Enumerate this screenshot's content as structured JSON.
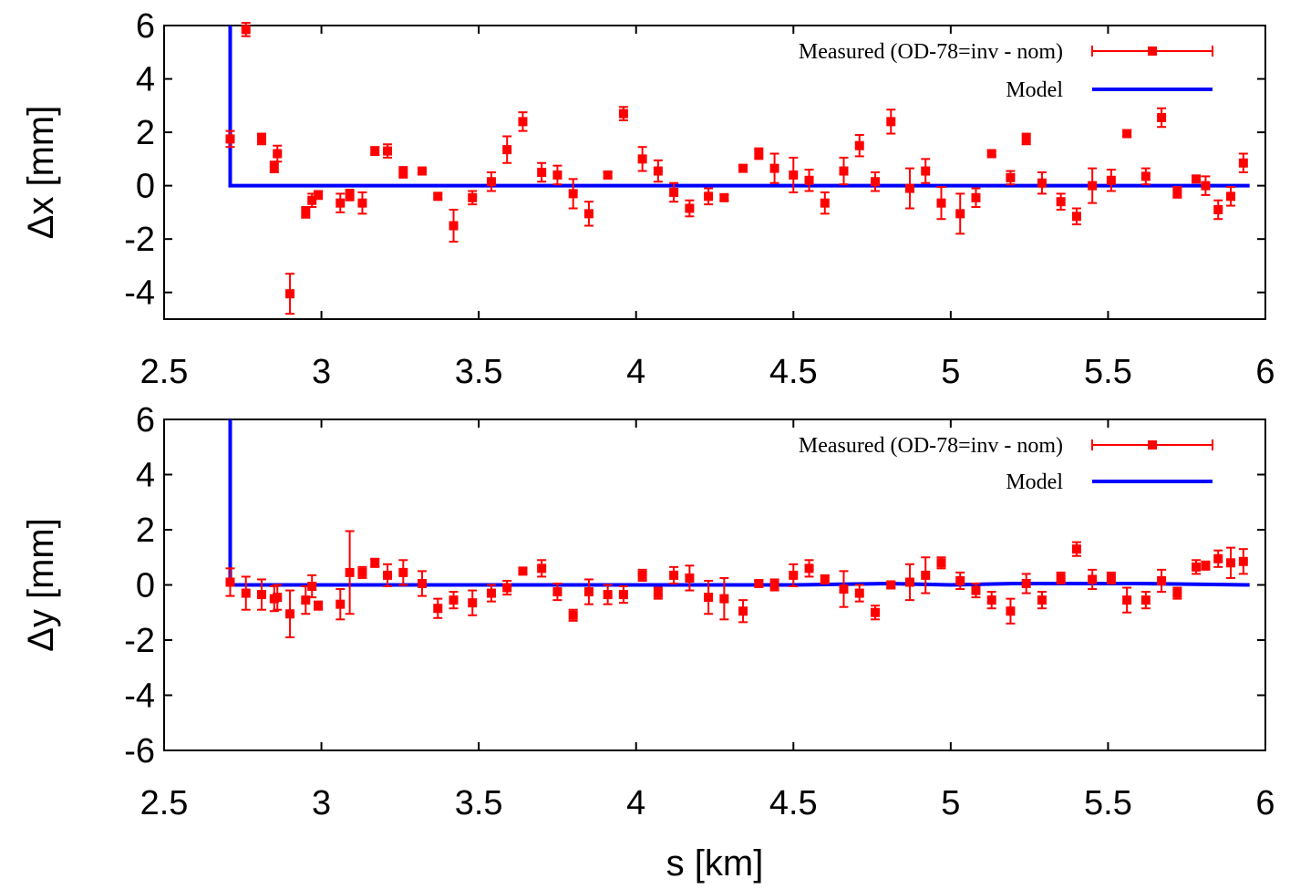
{
  "chart_data": [
    {
      "type": "scatter",
      "title": "",
      "xlabel": "",
      "ylabel": "Δx [mm]",
      "xlim": [
        2.5,
        6.0
      ],
      "ylim": [
        -5,
        6
      ],
      "x_ticks": [
        "2.5",
        "3",
        "3.5",
        "4",
        "4.5",
        "5",
        "5.5",
        "6"
      ],
      "y_ticks": [
        "6",
        "4",
        "2",
        "0",
        "-2",
        "-4"
      ],
      "y_tick_values": [
        6,
        4,
        2,
        0,
        -2,
        -4
      ],
      "grid": false,
      "legend_position": "top-right",
      "legend": [
        "Measured (OD-78=inv - nom)",
        "Model"
      ],
      "series": [
        {
          "name": "Measured (OD-78=inv - nom)",
          "color": "#ff0000",
          "points": [
            [
              2.71,
              1.75,
              0.3
            ],
            [
              2.76,
              5.85,
              0.25
            ],
            [
              2.81,
              1.75,
              0.2
            ],
            [
              2.85,
              0.7,
              0.2
            ],
            [
              2.86,
              1.2,
              0.3
            ],
            [
              2.9,
              -4.05,
              0.75
            ],
            [
              2.95,
              -1.0,
              0.2
            ],
            [
              2.97,
              -0.55,
              0.25
            ],
            [
              2.99,
              -0.35,
              0.15
            ],
            [
              3.06,
              -0.65,
              0.35
            ],
            [
              3.09,
              -0.35,
              0.2
            ],
            [
              3.13,
              -0.65,
              0.4
            ],
            [
              3.17,
              1.3,
              0.15
            ],
            [
              3.21,
              1.3,
              0.25
            ],
            [
              3.26,
              0.5,
              0.2
            ],
            [
              3.32,
              0.55,
              0.1
            ],
            [
              3.37,
              -0.4,
              0.1
            ],
            [
              3.42,
              -1.5,
              0.6
            ],
            [
              3.48,
              -0.45,
              0.25
            ],
            [
              3.54,
              0.15,
              0.35
            ],
            [
              3.59,
              1.35,
              0.5
            ],
            [
              3.64,
              2.4,
              0.35
            ],
            [
              3.7,
              0.5,
              0.35
            ],
            [
              3.75,
              0.4,
              0.35
            ],
            [
              3.8,
              -0.3,
              0.55
            ],
            [
              3.85,
              -1.05,
              0.45
            ],
            [
              3.91,
              0.4,
              0.1
            ],
            [
              3.96,
              2.7,
              0.25
            ],
            [
              4.02,
              1.0,
              0.45
            ],
            [
              4.07,
              0.55,
              0.4
            ],
            [
              4.12,
              -0.25,
              0.35
            ],
            [
              4.17,
              -0.85,
              0.3
            ],
            [
              4.23,
              -0.4,
              0.3
            ],
            [
              4.28,
              -0.45,
              0.1
            ],
            [
              4.34,
              0.65,
              0.1
            ],
            [
              4.39,
              1.2,
              0.2
            ],
            [
              4.44,
              0.65,
              0.55
            ],
            [
              4.5,
              0.4,
              0.65
            ],
            [
              4.55,
              0.2,
              0.4
            ],
            [
              4.6,
              -0.65,
              0.4
            ],
            [
              4.66,
              0.55,
              0.5
            ],
            [
              4.71,
              1.5,
              0.4
            ],
            [
              4.76,
              0.15,
              0.35
            ],
            [
              4.81,
              2.4,
              0.45
            ],
            [
              4.87,
              -0.1,
              0.75
            ],
            [
              4.92,
              0.55,
              0.45
            ],
            [
              4.97,
              -0.65,
              0.6
            ],
            [
              5.03,
              -1.05,
              0.75
            ],
            [
              5.08,
              -0.45,
              0.35
            ],
            [
              5.13,
              1.2,
              0.1
            ],
            [
              5.19,
              0.3,
              0.25
            ],
            [
              5.24,
              1.75,
              0.2
            ],
            [
              5.29,
              0.1,
              0.4
            ],
            [
              5.35,
              -0.6,
              0.3
            ],
            [
              5.4,
              -1.15,
              0.3
            ],
            [
              5.45,
              0.0,
              0.65
            ],
            [
              5.51,
              0.2,
              0.4
            ],
            [
              5.56,
              1.95,
              0.1
            ],
            [
              5.62,
              0.35,
              0.3
            ],
            [
              5.67,
              2.55,
              0.35
            ],
            [
              5.72,
              -0.25,
              0.2
            ],
            [
              5.78,
              0.25,
              0.1
            ],
            [
              5.81,
              0.0,
              0.35
            ],
            [
              5.85,
              -0.9,
              0.35
            ],
            [
              5.89,
              -0.4,
              0.35
            ],
            [
              5.93,
              0.85,
              0.35
            ]
          ]
        },
        {
          "name": "Model",
          "color": "#0000ff",
          "points": [
            [
              2.71,
              6.0
            ],
            [
              2.71,
              0.0
            ],
            [
              5.95,
              0.0
            ]
          ]
        }
      ]
    },
    {
      "type": "scatter",
      "title": "",
      "xlabel": "s [km]",
      "ylabel": "Δy [mm]",
      "xlim": [
        2.5,
        6.0
      ],
      "ylim": [
        -6,
        6
      ],
      "x_ticks": [
        "2.5",
        "3",
        "3.5",
        "4",
        "4.5",
        "5",
        "5.5",
        "6"
      ],
      "y_ticks": [
        "6",
        "4",
        "2",
        "0",
        "-2",
        "-4",
        "-6"
      ],
      "y_tick_values": [
        6,
        4,
        2,
        0,
        -2,
        -4,
        -6
      ],
      "grid": false,
      "legend_position": "top-right",
      "legend": [
        "Measured (OD-78=inv - nom)",
        "Model"
      ],
      "series": [
        {
          "name": "Measured (OD-78=inv - nom)",
          "color": "#ff0000",
          "points": [
            [
              2.71,
              0.1,
              0.5
            ],
            [
              2.76,
              -0.3,
              0.6
            ],
            [
              2.81,
              -0.35,
              0.55
            ],
            [
              2.85,
              -0.5,
              0.45
            ],
            [
              2.86,
              -0.45,
              0.45
            ],
            [
              2.9,
              -1.05,
              0.85
            ],
            [
              2.95,
              -0.55,
              0.5
            ],
            [
              2.97,
              -0.05,
              0.4
            ],
            [
              2.99,
              -0.75,
              0.15
            ],
            [
              3.06,
              -0.7,
              0.55
            ],
            [
              3.09,
              0.45,
              1.5
            ],
            [
              3.13,
              0.45,
              0.2
            ],
            [
              3.17,
              0.8,
              0.15
            ],
            [
              3.21,
              0.35,
              0.4
            ],
            [
              3.26,
              0.45,
              0.45
            ],
            [
              3.32,
              0.05,
              0.45
            ],
            [
              3.37,
              -0.85,
              0.35
            ],
            [
              3.42,
              -0.55,
              0.3
            ],
            [
              3.48,
              -0.65,
              0.45
            ],
            [
              3.54,
              -0.3,
              0.3
            ],
            [
              3.59,
              -0.1,
              0.25
            ],
            [
              3.64,
              0.5,
              0.1
            ],
            [
              3.7,
              0.6,
              0.3
            ],
            [
              3.75,
              -0.25,
              0.3
            ],
            [
              3.8,
              -1.1,
              0.2
            ],
            [
              3.85,
              -0.25,
              0.45
            ],
            [
              3.91,
              -0.35,
              0.35
            ],
            [
              3.96,
              -0.35,
              0.3
            ],
            [
              4.02,
              0.35,
              0.2
            ],
            [
              4.07,
              -0.3,
              0.2
            ],
            [
              4.12,
              0.35,
              0.3
            ],
            [
              4.17,
              0.25,
              0.45
            ],
            [
              4.23,
              -0.45,
              0.6
            ],
            [
              4.28,
              -0.5,
              0.75
            ],
            [
              4.34,
              -0.95,
              0.4
            ],
            [
              4.39,
              0.05,
              0.1
            ],
            [
              4.44,
              0.0,
              0.2
            ],
            [
              4.5,
              0.35,
              0.4
            ],
            [
              4.55,
              0.6,
              0.3
            ],
            [
              4.6,
              0.2,
              0.15
            ],
            [
              4.66,
              -0.15,
              0.65
            ],
            [
              4.71,
              -0.3,
              0.3
            ],
            [
              4.76,
              -1.0,
              0.25
            ],
            [
              4.81,
              0.0,
              0.1
            ],
            [
              4.87,
              0.1,
              0.65
            ],
            [
              4.92,
              0.35,
              0.65
            ],
            [
              4.97,
              0.8,
              0.2
            ],
            [
              5.03,
              0.15,
              0.3
            ],
            [
              5.08,
              -0.2,
              0.25
            ],
            [
              5.13,
              -0.55,
              0.3
            ],
            [
              5.19,
              -0.95,
              0.45
            ],
            [
              5.24,
              0.05,
              0.35
            ],
            [
              5.29,
              -0.55,
              0.3
            ],
            [
              5.35,
              0.25,
              0.2
            ],
            [
              5.4,
              1.3,
              0.25
            ],
            [
              5.45,
              0.2,
              0.35
            ],
            [
              5.51,
              0.25,
              0.2
            ],
            [
              5.56,
              -0.55,
              0.45
            ],
            [
              5.62,
              -0.55,
              0.3
            ],
            [
              5.67,
              0.15,
              0.4
            ],
            [
              5.72,
              -0.3,
              0.2
            ],
            [
              5.78,
              0.65,
              0.25
            ],
            [
              5.81,
              0.7,
              0.15
            ],
            [
              5.85,
              0.95,
              0.3
            ],
            [
              5.89,
              0.8,
              0.55
            ],
            [
              5.93,
              0.85,
              0.45
            ]
          ]
        },
        {
          "name": "Model",
          "color": "#0000ff",
          "points": [
            [
              2.71,
              6.0
            ],
            [
              2.71,
              0.0
            ],
            [
              3.5,
              0.0
            ],
            [
              4.5,
              0.0
            ],
            [
              4.8,
              0.05
            ],
            [
              5.0,
              0.0
            ],
            [
              5.2,
              0.05
            ],
            [
              5.6,
              0.05
            ],
            [
              5.95,
              0.0
            ]
          ]
        }
      ]
    }
  ]
}
